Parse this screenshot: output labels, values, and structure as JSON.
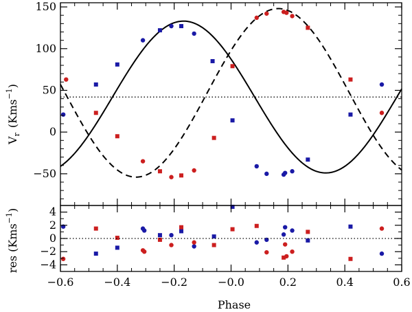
{
  "chart_data": [
    {
      "type": "line",
      "panel": "top",
      "xlabel": "Phase",
      "ylabel": "V_r (Kms^-1)",
      "ylabel_main": "V",
      "ylabel_sub": "r",
      "ylabel_unit": "(Kms",
      "ylabel_sup": "−1",
      "ylabel_close": ")",
      "xlim": [
        -0.6,
        0.6
      ],
      "ylim": [
        -88,
        155
      ],
      "xticks": [
        -0.6,
        -0.4,
        -0.2,
        -0.0,
        0.2,
        0.4,
        0.6
      ],
      "xtick_labels": [
        "−0.6",
        "−0.4",
        "−0.2",
        "−0.0",
        "0.2",
        "0.4",
        "0.6"
      ],
      "yticks": [
        -50,
        0,
        50,
        100,
        150
      ],
      "ytick_labels": [
        "−50",
        "0",
        "50",
        "100",
        "150"
      ],
      "systemic_velocity": 42,
      "model_curves": [
        {
          "name": "primary model",
          "style": "solid",
          "color": "#000000",
          "gamma": 42,
          "K": 91,
          "phase0": -0.167
        },
        {
          "name": "secondary model",
          "style": "dashed",
          "color": "#000000",
          "gamma": 47,
          "K": 101,
          "phase0": 0.166
        }
      ],
      "series": [
        {
          "name": "primary",
          "color": "#1a1aa6",
          "circles": [
            [
              -0.59,
              21
            ],
            [
              -0.31,
              110
            ],
            [
              -0.21,
              127
            ],
            [
              -0.13,
              118
            ],
            [
              0.09,
              -41
            ],
            [
              0.125,
              -50
            ],
            [
              0.185,
              -51
            ],
            [
              0.19,
              -49
            ],
            [
              0.215,
              -47
            ],
            [
              0.53,
              57
            ]
          ],
          "squares": [
            [
              -0.475,
              57
            ],
            [
              -0.4,
              81
            ],
            [
              -0.25,
              122
            ],
            [
              -0.175,
              127
            ],
            [
              -0.065,
              85
            ],
            [
              0.005,
              14
            ],
            [
              0.27,
              -33
            ],
            [
              0.42,
              21
            ]
          ]
        },
        {
          "name": "secondary",
          "color": "#cc1f1f",
          "circles": [
            [
              -0.58,
              63
            ],
            [
              -0.31,
              -35
            ],
            [
              -0.21,
              -54
            ],
            [
              -0.13,
              -46
            ],
            [
              0.09,
              137
            ],
            [
              0.125,
              142
            ],
            [
              0.185,
              144
            ],
            [
              0.195,
              143
            ],
            [
              0.215,
              139
            ],
            [
              0.53,
              23
            ]
          ],
          "squares": [
            [
              -0.475,
              23
            ],
            [
              -0.4,
              -5
            ],
            [
              -0.25,
              -47
            ],
            [
              -0.175,
              -52
            ],
            [
              -0.06,
              -7
            ],
            [
              0.005,
              79
            ],
            [
              0.27,
              125
            ],
            [
              0.42,
              63
            ]
          ]
        }
      ]
    },
    {
      "type": "scatter",
      "panel": "bottom",
      "xlabel": "Phase",
      "ylabel": "res (Kms^-1)",
      "ylabel_main": "res (Kms",
      "ylabel_sup": "−1",
      "ylabel_close": ")",
      "xlim": [
        -0.6,
        0.6
      ],
      "ylim": [
        -5,
        5
      ],
      "yticks": [
        -4,
        -2,
        0,
        2,
        4
      ],
      "ytick_labels": [
        "−4",
        "−2",
        "0",
        "2",
        "4"
      ],
      "zero_line": 0,
      "series": [
        {
          "name": "primary",
          "color": "#1a1aa6",
          "circles": [
            [
              -0.59,
              1.8
            ],
            [
              -0.31,
              1.5
            ],
            [
              -0.305,
              1.2
            ],
            [
              -0.21,
              0.5
            ],
            [
              -0.13,
              -1.2
            ],
            [
              0.09,
              -0.6
            ],
            [
              0.125,
              -0.2
            ],
            [
              0.185,
              0.6
            ],
            [
              0.19,
              1.7
            ],
            [
              0.215,
              1.2
            ],
            [
              0.53,
              -2.3
            ]
          ],
          "squares": [
            [
              -0.475,
              -2.3
            ],
            [
              -0.4,
              -1.4
            ],
            [
              -0.25,
              0.5
            ],
            [
              -0.175,
              1.1
            ],
            [
              -0.06,
              0.3
            ],
            [
              0.005,
              4.8
            ],
            [
              0.27,
              -0.3
            ],
            [
              0.42,
              1.8
            ]
          ]
        },
        {
          "name": "secondary",
          "color": "#cc1f1f",
          "circles": [
            [
              -0.59,
              -3.1
            ],
            [
              -0.31,
              -1.8
            ],
            [
              -0.305,
              -2.0
            ],
            [
              -0.21,
              -1.0
            ],
            [
              -0.13,
              -0.6
            ],
            [
              0.125,
              -2.1
            ],
            [
              0.19,
              -0.9
            ],
            [
              0.195,
              -2.7
            ],
            [
              0.215,
              -2.0
            ],
            [
              0.53,
              1.5
            ]
          ],
          "squares": [
            [
              -0.475,
              1.5
            ],
            [
              -0.4,
              0.1
            ],
            [
              -0.25,
              -0.2
            ],
            [
              -0.175,
              1.7
            ],
            [
              -0.06,
              -1.0
            ],
            [
              0.005,
              1.4
            ],
            [
              0.09,
              1.9
            ],
            [
              0.185,
              -2.9
            ],
            [
              0.27,
              1.0
            ],
            [
              0.42,
              -3.1
            ]
          ]
        }
      ]
    }
  ]
}
